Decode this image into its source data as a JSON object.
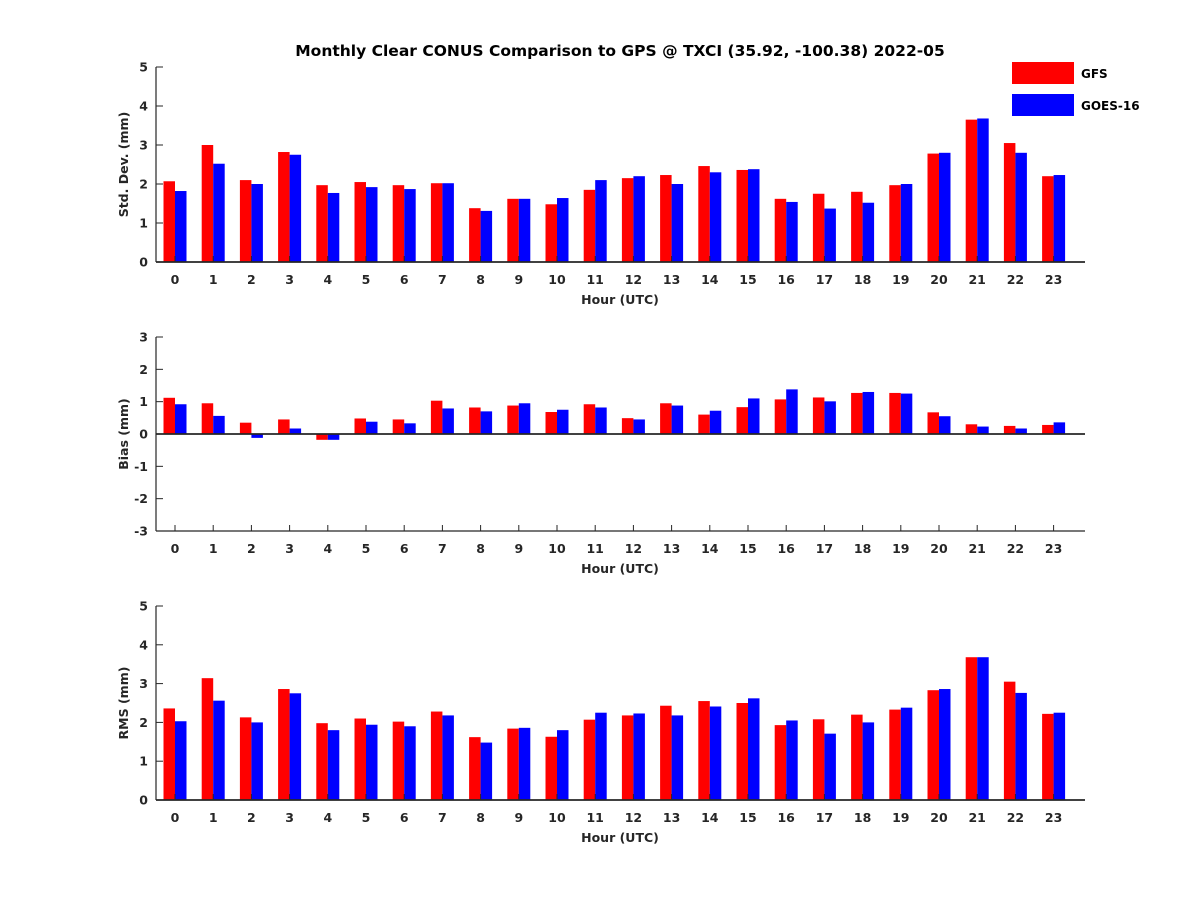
{
  "chart_data": {
    "type": "bar",
    "title": "Monthly Clear CONUS Comparison to GPS @ TXCI (35.92, -100.38) 2022-05",
    "legend": {
      "placement": "top-right",
      "entries": [
        {
          "name": "GFS",
          "color": "#ff0000"
        },
        {
          "name": "GOES-16",
          "color": "#0000ff"
        }
      ]
    },
    "categories": [
      "0",
      "1",
      "2",
      "3",
      "4",
      "5",
      "6",
      "7",
      "8",
      "9",
      "10",
      "11",
      "12",
      "13",
      "14",
      "15",
      "16",
      "17",
      "18",
      "19",
      "20",
      "21",
      "22",
      "23"
    ],
    "panels": [
      {
        "ylabel": "Std. Dev. (mm)",
        "xlabel": "Hour (UTC)",
        "ylim": [
          0,
          5
        ],
        "yticks": [
          0,
          1,
          2,
          3,
          4,
          5
        ],
        "series": [
          {
            "name": "GFS",
            "values": [
              2.07,
              3.0,
              2.1,
              2.82,
              1.97,
              2.05,
              1.97,
              2.02,
              1.38,
              1.62,
              1.48,
              1.85,
              2.15,
              2.23,
              2.46,
              2.36,
              1.62,
              1.75,
              1.8,
              1.97,
              2.78,
              3.65,
              3.05,
              2.2
            ]
          },
          {
            "name": "GOES-16",
            "values": [
              1.82,
              2.52,
              2.0,
              2.75,
              1.77,
              1.92,
              1.87,
              2.02,
              1.31,
              1.62,
              1.64,
              2.1,
              2.2,
              2.0,
              2.3,
              2.38,
              1.54,
              1.37,
              1.52,
              2.0,
              2.8,
              3.68,
              2.8,
              2.23
            ]
          }
        ]
      },
      {
        "ylabel": "Bias (mm)",
        "xlabel": "Hour (UTC)",
        "ylim": [
          -3,
          3
        ],
        "yticks": [
          -3,
          -2,
          -1,
          0,
          1,
          2,
          3
        ],
        "series": [
          {
            "name": "GFS",
            "values": [
              1.12,
              0.95,
              0.35,
              0.45,
              -0.18,
              0.48,
              0.45,
              1.03,
              0.82,
              0.88,
              0.68,
              0.92,
              0.49,
              0.95,
              0.6,
              0.83,
              1.07,
              1.13,
              1.27,
              1.27,
              0.67,
              0.3,
              0.25,
              0.28
            ]
          },
          {
            "name": "GOES-16",
            "values": [
              0.92,
              0.56,
              -0.12,
              0.17,
              -0.18,
              0.38,
              0.33,
              0.79,
              0.7,
              0.95,
              0.75,
              0.82,
              0.45,
              0.88,
              0.72,
              1.1,
              1.38,
              1.01,
              1.3,
              1.25,
              0.55,
              0.23,
              0.17,
              0.36
            ]
          }
        ]
      },
      {
        "ylabel": "RMS (mm)",
        "xlabel": "Hour (UTC)",
        "ylim": [
          0,
          5
        ],
        "yticks": [
          0,
          1,
          2,
          3,
          4,
          5
        ],
        "series": [
          {
            "name": "GFS",
            "values": [
              2.36,
              3.14,
              2.13,
              2.86,
              1.98,
              2.1,
              2.02,
              2.28,
              1.62,
              1.84,
              1.63,
              2.07,
              2.18,
              2.43,
              2.55,
              2.5,
              1.93,
              2.08,
              2.2,
              2.33,
              2.83,
              3.68,
              3.05,
              2.22
            ]
          },
          {
            "name": "GOES-16",
            "values": [
              2.03,
              2.56,
              2.0,
              2.75,
              1.8,
              1.94,
              1.9,
              2.18,
              1.48,
              1.86,
              1.8,
              2.25,
              2.23,
              2.18,
              2.41,
              2.62,
              2.05,
              1.71,
              2.0,
              2.38,
              2.86,
              3.68,
              2.76,
              2.25
            ]
          }
        ]
      }
    ]
  }
}
